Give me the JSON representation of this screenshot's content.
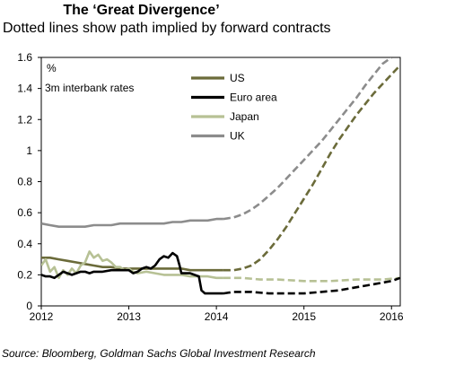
{
  "chart_data": {
    "type": "line",
    "title": "The ‘Great Divergence’",
    "subtitle": "Dotted lines show path implied by forward contracts",
    "unit": "%",
    "ylabel": "3m interbank rates",
    "source": "Source: Bloomberg, Goldman Sachs Global Investment Research",
    "xlim": [
      2012,
      2016.1
    ],
    "ylim": [
      0,
      1.6
    ],
    "xticks": [
      "2012",
      "2013",
      "2014",
      "2015",
      "2016"
    ],
    "yticks": [
      "0",
      "0.2",
      "0.4",
      "0.6",
      "0.8",
      "1",
      "1.2",
      "1.4",
      "1.6"
    ],
    "grid": false,
    "legend_position": "top-center",
    "series": [
      {
        "name": "US",
        "color": "#6b6b3a",
        "actual": [
          [
            2012.0,
            0.31
          ],
          [
            2012.1,
            0.31
          ],
          [
            2012.2,
            0.3
          ],
          [
            2012.3,
            0.29
          ],
          [
            2012.4,
            0.28
          ],
          [
            2012.5,
            0.27
          ],
          [
            2012.6,
            0.26
          ],
          [
            2012.7,
            0.25
          ],
          [
            2012.8,
            0.25
          ],
          [
            2012.9,
            0.24
          ],
          [
            2013.0,
            0.24
          ],
          [
            2013.1,
            0.24
          ],
          [
            2013.2,
            0.24
          ],
          [
            2013.3,
            0.24
          ],
          [
            2013.4,
            0.24
          ],
          [
            2013.5,
            0.24
          ],
          [
            2013.6,
            0.24
          ],
          [
            2013.7,
            0.23
          ],
          [
            2013.8,
            0.23
          ],
          [
            2013.9,
            0.23
          ],
          [
            2014.0,
            0.23
          ],
          [
            2014.08,
            0.23
          ]
        ],
        "forward": [
          [
            2014.08,
            0.23
          ],
          [
            2014.2,
            0.23
          ],
          [
            2014.3,
            0.24
          ],
          [
            2014.4,
            0.26
          ],
          [
            2014.5,
            0.3
          ],
          [
            2014.6,
            0.36
          ],
          [
            2014.7,
            0.43
          ],
          [
            2014.8,
            0.51
          ],
          [
            2014.9,
            0.6
          ],
          [
            2015.0,
            0.69
          ],
          [
            2015.1,
            0.78
          ],
          [
            2015.2,
            0.88
          ],
          [
            2015.3,
            0.98
          ],
          [
            2015.4,
            1.07
          ],
          [
            2015.5,
            1.15
          ],
          [
            2015.6,
            1.23
          ],
          [
            2015.7,
            1.3
          ],
          [
            2015.8,
            1.37
          ],
          [
            2015.9,
            1.43
          ],
          [
            2016.0,
            1.49
          ],
          [
            2016.1,
            1.55
          ]
        ]
      },
      {
        "name": "Euro area",
        "color": "#000000",
        "actual": [
          [
            2012.0,
            0.2
          ],
          [
            2012.05,
            0.19
          ],
          [
            2012.1,
            0.19
          ],
          [
            2012.15,
            0.18
          ],
          [
            2012.2,
            0.2
          ],
          [
            2012.25,
            0.22
          ],
          [
            2012.3,
            0.21
          ],
          [
            2012.35,
            0.2
          ],
          [
            2012.4,
            0.21
          ],
          [
            2012.45,
            0.22
          ],
          [
            2012.5,
            0.22
          ],
          [
            2012.55,
            0.21
          ],
          [
            2012.6,
            0.22
          ],
          [
            2012.7,
            0.22
          ],
          [
            2012.8,
            0.23
          ],
          [
            2012.9,
            0.23
          ],
          [
            2013.0,
            0.23
          ],
          [
            2013.05,
            0.21
          ],
          [
            2013.1,
            0.22
          ],
          [
            2013.15,
            0.24
          ],
          [
            2013.2,
            0.25
          ],
          [
            2013.25,
            0.24
          ],
          [
            2013.3,
            0.26
          ],
          [
            2013.35,
            0.3
          ],
          [
            2013.4,
            0.32
          ],
          [
            2013.45,
            0.31
          ],
          [
            2013.5,
            0.34
          ],
          [
            2013.55,
            0.32
          ],
          [
            2013.58,
            0.26
          ],
          [
            2013.6,
            0.21
          ],
          [
            2013.65,
            0.21
          ],
          [
            2013.7,
            0.21
          ],
          [
            2013.75,
            0.2
          ],
          [
            2013.8,
            0.19
          ],
          [
            2013.83,
            0.1
          ],
          [
            2013.87,
            0.08
          ],
          [
            2013.95,
            0.08
          ],
          [
            2014.08,
            0.08
          ]
        ],
        "forward": [
          [
            2014.08,
            0.08
          ],
          [
            2014.2,
            0.09
          ],
          [
            2014.4,
            0.09
          ],
          [
            2014.6,
            0.08
          ],
          [
            2014.8,
            0.08
          ],
          [
            2015.0,
            0.08
          ],
          [
            2015.2,
            0.09
          ],
          [
            2015.4,
            0.1
          ],
          [
            2015.6,
            0.12
          ],
          [
            2015.8,
            0.14
          ],
          [
            2016.0,
            0.16
          ],
          [
            2016.1,
            0.18
          ]
        ]
      },
      {
        "name": "Japan",
        "color": "#b7c195",
        "actual": [
          [
            2012.0,
            0.26
          ],
          [
            2012.05,
            0.3
          ],
          [
            2012.1,
            0.22
          ],
          [
            2012.15,
            0.25
          ],
          [
            2012.2,
            0.18
          ],
          [
            2012.25,
            0.23
          ],
          [
            2012.3,
            0.2
          ],
          [
            2012.35,
            0.24
          ],
          [
            2012.4,
            0.21
          ],
          [
            2012.45,
            0.26
          ],
          [
            2012.5,
            0.28
          ],
          [
            2012.55,
            0.35
          ],
          [
            2012.6,
            0.31
          ],
          [
            2012.65,
            0.33
          ],
          [
            2012.7,
            0.29
          ],
          [
            2012.75,
            0.3
          ],
          [
            2012.8,
            0.28
          ],
          [
            2012.85,
            0.25
          ],
          [
            2012.9,
            0.25
          ],
          [
            2012.95,
            0.23
          ],
          [
            2013.0,
            0.24
          ],
          [
            2013.05,
            0.22
          ],
          [
            2013.1,
            0.21
          ],
          [
            2013.2,
            0.22
          ],
          [
            2013.3,
            0.21
          ],
          [
            2013.4,
            0.2
          ],
          [
            2013.5,
            0.2
          ],
          [
            2013.6,
            0.2
          ],
          [
            2013.7,
            0.19
          ],
          [
            2013.8,
            0.19
          ],
          [
            2013.9,
            0.19
          ],
          [
            2014.0,
            0.18
          ],
          [
            2014.08,
            0.18
          ]
        ],
        "forward": [
          [
            2014.08,
            0.18
          ],
          [
            2014.3,
            0.18
          ],
          [
            2014.5,
            0.17
          ],
          [
            2014.7,
            0.17
          ],
          [
            2015.0,
            0.16
          ],
          [
            2015.3,
            0.16
          ],
          [
            2015.6,
            0.17
          ],
          [
            2015.9,
            0.17
          ],
          [
            2016.1,
            0.18
          ]
        ]
      },
      {
        "name": "UK",
        "color": "#8c8c8c",
        "actual": [
          [
            2012.0,
            0.53
          ],
          [
            2012.1,
            0.52
          ],
          [
            2012.2,
            0.51
          ],
          [
            2012.3,
            0.51
          ],
          [
            2012.4,
            0.51
          ],
          [
            2012.5,
            0.51
          ],
          [
            2012.6,
            0.52
          ],
          [
            2012.7,
            0.52
          ],
          [
            2012.8,
            0.52
          ],
          [
            2012.9,
            0.53
          ],
          [
            2013.0,
            0.53
          ],
          [
            2013.1,
            0.53
          ],
          [
            2013.2,
            0.53
          ],
          [
            2013.3,
            0.53
          ],
          [
            2013.4,
            0.53
          ],
          [
            2013.5,
            0.54
          ],
          [
            2013.6,
            0.54
          ],
          [
            2013.7,
            0.55
          ],
          [
            2013.8,
            0.55
          ],
          [
            2013.9,
            0.55
          ],
          [
            2014.0,
            0.56
          ],
          [
            2014.08,
            0.56
          ]
        ],
        "forward": [
          [
            2014.08,
            0.56
          ],
          [
            2014.2,
            0.57
          ],
          [
            2014.3,
            0.59
          ],
          [
            2014.4,
            0.62
          ],
          [
            2014.5,
            0.66
          ],
          [
            2014.6,
            0.71
          ],
          [
            2014.7,
            0.76
          ],
          [
            2014.8,
            0.82
          ],
          [
            2014.9,
            0.88
          ],
          [
            2015.0,
            0.94
          ],
          [
            2015.1,
            1.0
          ],
          [
            2015.2,
            1.06
          ],
          [
            2015.3,
            1.13
          ],
          [
            2015.4,
            1.2
          ],
          [
            2015.5,
            1.27
          ],
          [
            2015.6,
            1.34
          ],
          [
            2015.7,
            1.42
          ],
          [
            2015.8,
            1.49
          ],
          [
            2015.9,
            1.56
          ],
          [
            2016.0,
            1.6
          ]
        ]
      }
    ]
  }
}
